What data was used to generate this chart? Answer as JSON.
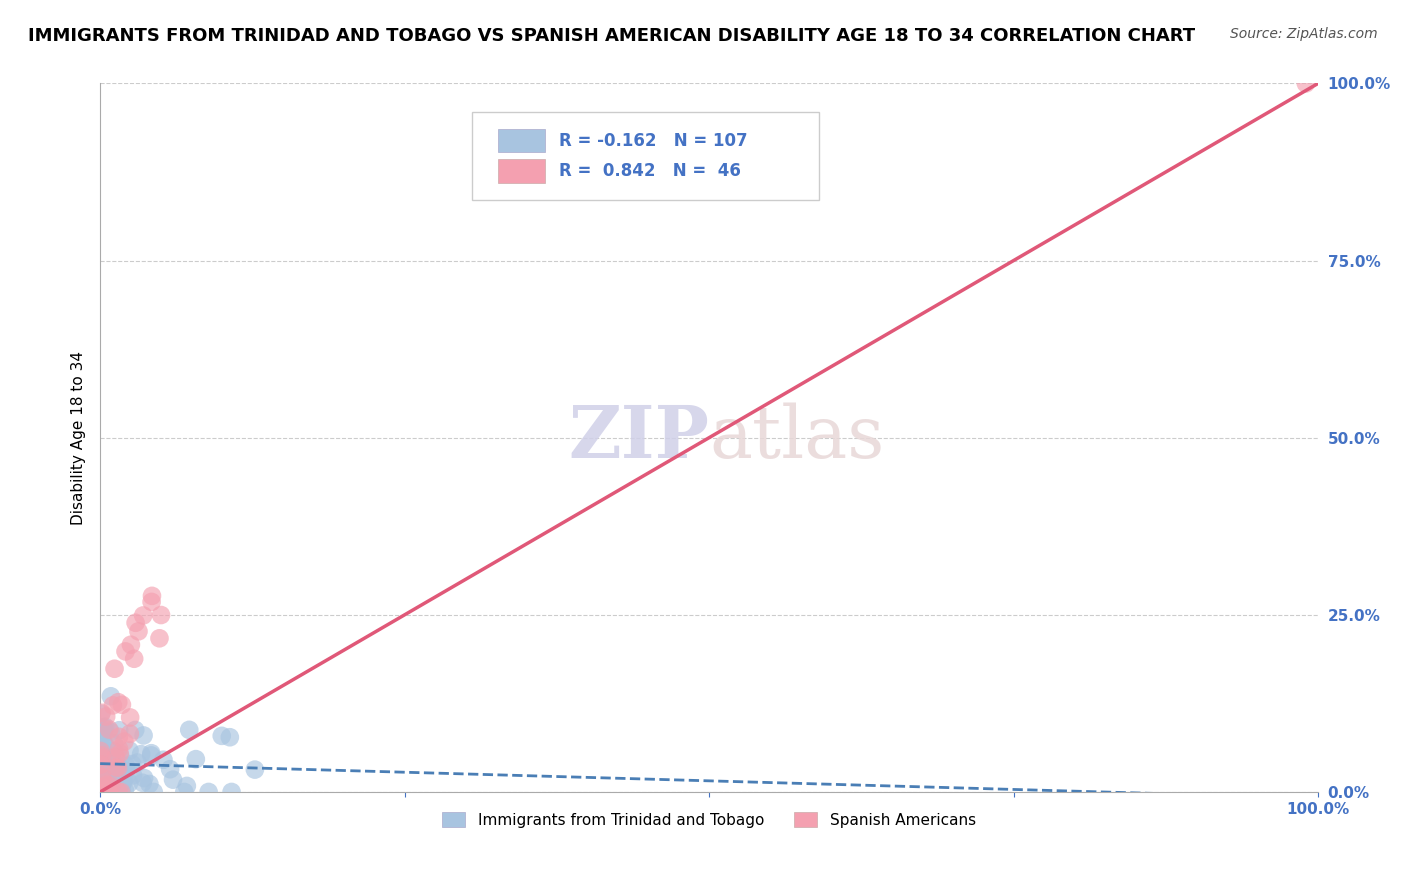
{
  "title": "IMMIGRANTS FROM TRINIDAD AND TOBAGO VS SPANISH AMERICAN DISABILITY AGE 18 TO 34 CORRELATION CHART",
  "source": "Source: ZipAtlas.com",
  "ylabel": "Disability Age 18 to 34",
  "watermark_zip": "ZIP",
  "watermark_atlas": "atlas",
  "legend_blue_label": "Immigrants from Trinidad and Tobago",
  "legend_pink_label": "Spanish Americans",
  "blue_R": -0.162,
  "blue_N": 107,
  "pink_R": 0.842,
  "pink_N": 46,
  "blue_color": "#a8c4e0",
  "pink_color": "#f4a0b0",
  "blue_line_color": "#4a7eb5",
  "pink_line_color": "#e05878",
  "title_fontsize": 13,
  "source_fontsize": 10,
  "watermark_fontsize": 52,
  "xlim": [
    0,
    1.0
  ],
  "ylim": [
    0,
    1.0
  ],
  "y_tick_positions": [
    0.0,
    0.25,
    0.5,
    0.75,
    1.0
  ],
  "y_tick_labels": [
    "0.0%",
    "25.0%",
    "50.0%",
    "75.0%",
    "100.0%"
  ]
}
